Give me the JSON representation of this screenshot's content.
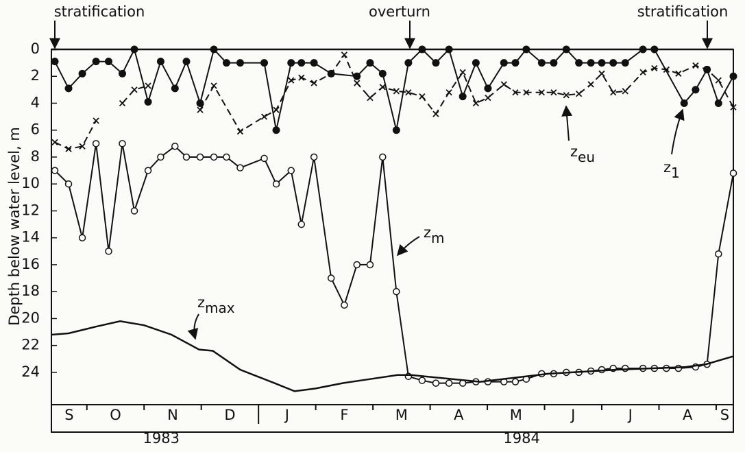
{
  "chart_data": {
    "type": "line",
    "annotations": [
      "stratification",
      "overturn",
      "stratification"
    ],
    "ylabel": "Depth below water level, m",
    "ylim": [
      0,
      26.4
    ],
    "yticks": [
      0,
      2,
      4,
      6,
      8,
      10,
      12,
      14,
      16,
      18,
      20,
      22,
      24
    ],
    "inverted": true,
    "xlim": [
      0.38,
      12.3
    ],
    "categories": [
      "S",
      "O",
      "N",
      "D",
      "J",
      "F",
      "M",
      "A",
      "M",
      "J",
      "J",
      "A",
      "S"
    ],
    "years": [
      "1983",
      "1984"
    ],
    "color": "#111111",
    "series": [
      {
        "name": "z",
        "subscript": "1",
        "marker": "filled-circle",
        "dash": false,
        "x": [
          0.44,
          0.68,
          0.92,
          1.16,
          1.38,
          1.62,
          1.83,
          2.07,
          2.29,
          2.54,
          2.74,
          2.98,
          3.22,
          3.44,
          3.68,
          4.1,
          4.31,
          4.57,
          4.75,
          4.97,
          5.27,
          5.72,
          5.95,
          6.17,
          6.41,
          6.62,
          6.86,
          7.1,
          7.33,
          7.57,
          7.8,
          8.01,
          8.29,
          8.49,
          8.68,
          8.95,
          9.16,
          9.38,
          9.6,
          9.81,
          10.0,
          10.2,
          10.41,
          10.72,
          10.92,
          11.44,
          11.64,
          11.84,
          12.04,
          12.3
        ],
        "values": [
          0.9,
          2.9,
          1.8,
          0.9,
          0.9,
          1.8,
          0,
          3.9,
          0.9,
          2.9,
          0.9,
          4,
          0,
          1,
          1,
          1,
          6,
          1,
          1,
          1,
          1.8,
          2,
          1,
          1.8,
          6,
          1,
          0,
          1,
          0,
          3.5,
          1,
          2.9,
          1,
          1,
          0,
          1,
          1,
          0,
          1,
          1,
          1,
          1,
          1,
          0,
          0,
          4,
          3,
          1.5,
          4,
          2
        ]
      },
      {
        "name": "z",
        "subscript": "eu",
        "marker": "x",
        "dash": true,
        "x": [
          0.44,
          0.68,
          0.92,
          1.16,
          null,
          1.62,
          1.83,
          2.07,
          null,
          2.98,
          3.22,
          3.68,
          4.1,
          4.31,
          4.57,
          4.75,
          4.97,
          5.27,
          5.5,
          5.72,
          5.95,
          6.17,
          6.41,
          6.62,
          6.86,
          7.1,
          7.33,
          7.57,
          7.8,
          8.01,
          8.29,
          8.49,
          8.68,
          8.95,
          9.16,
          9.38,
          9.6,
          9.81,
          10.0,
          10.2,
          10.41,
          10.72,
          10.92,
          11.13,
          11.34,
          11.64,
          11.84,
          12.04,
          12.3
        ],
        "values": [
          6.9,
          7.4,
          7.2,
          5.3,
          null,
          4,
          3,
          2.7,
          null,
          4.5,
          2.7,
          6.1,
          5,
          4.5,
          2.3,
          2.1,
          2.5,
          1.8,
          0.4,
          2.5,
          3.6,
          2.8,
          3.1,
          3.2,
          3.5,
          4.8,
          3.2,
          1.7,
          4,
          3.6,
          2.6,
          3.2,
          3.2,
          3.2,
          3.2,
          3.4,
          3.3,
          2.6,
          1.8,
          3.2,
          3.1,
          1.7,
          1.4,
          1.5,
          1.8,
          1.2,
          1.5,
          2.3,
          4.3
        ]
      },
      {
        "name": "z",
        "subscript": "m",
        "marker": "open-circle",
        "dash": false,
        "x": [
          0.44,
          0.68,
          0.92,
          1.16,
          1.38,
          1.62,
          1.83,
          2.07,
          2.29,
          2.54,
          2.74,
          2.98,
          3.22,
          3.44,
          3.68,
          4.1,
          4.31,
          4.57,
          4.75,
          4.97,
          5.27,
          5.5,
          5.72,
          5.95,
          6.17,
          6.41,
          6.62,
          6.86,
          7.1,
          7.33,
          7.57,
          7.8,
          8.01,
          8.29,
          8.49,
          8.68,
          8.95,
          9.16,
          9.38,
          9.6,
          9.81,
          10.0,
          10.2,
          10.41,
          10.72,
          10.92,
          11.13,
          11.34,
          11.64,
          11.84,
          12.04,
          12.3
        ],
        "values": [
          9,
          10,
          14,
          7,
          15,
          7,
          12,
          9,
          8,
          7.2,
          8,
          8,
          8,
          8,
          8.8,
          8.1,
          10,
          9,
          13,
          8,
          17,
          19,
          16,
          16,
          8,
          18,
          24.3,
          24.6,
          24.8,
          24.8,
          24.8,
          24.7,
          24.7,
          24.7,
          24.7,
          24.5,
          24.1,
          24.1,
          24.0,
          24.0,
          23.9,
          23.8,
          23.7,
          23.7,
          23.7,
          23.7,
          23.7,
          23.7,
          23.6,
          23.4,
          15.2,
          9.2
        ]
      },
      {
        "name": "z",
        "subscript": "max",
        "marker": "none",
        "dash": false,
        "x": [
          0.38,
          0.68,
          1.16,
          1.58,
          2.0,
          2.48,
          2.96,
          3.2,
          3.68,
          4.28,
          4.63,
          4.99,
          5.47,
          5.95,
          6.43,
          6.67,
          7.87,
          9.07,
          10.26,
          11.46,
          11.82,
          12.3
        ],
        "values": [
          21.2,
          21.1,
          20.6,
          20.2,
          20.5,
          21.2,
          22.3,
          22.4,
          23.8,
          24.8,
          25.4,
          25.2,
          24.8,
          24.5,
          24.2,
          24.2,
          24.7,
          24.1,
          23.8,
          23.6,
          23.4,
          22.8
        ]
      }
    ]
  }
}
